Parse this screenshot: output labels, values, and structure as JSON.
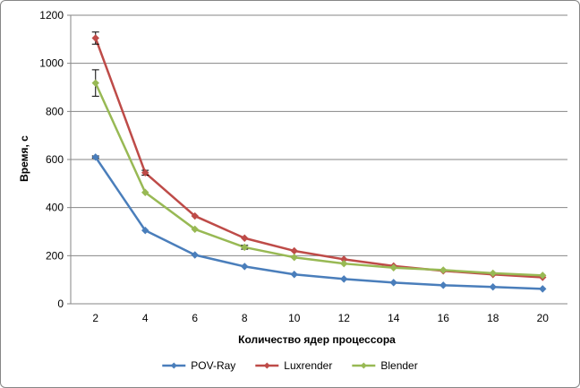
{
  "chart_data": {
    "type": "line",
    "title": "",
    "xlabel": "Количество  ядер процессора",
    "ylabel": "Время, с",
    "x": [
      2,
      4,
      6,
      8,
      10,
      12,
      14,
      16,
      18,
      20
    ],
    "xlim": [
      1,
      21
    ],
    "ylim": [
      0,
      1200
    ],
    "yticks": [
      0,
      200,
      400,
      600,
      800,
      1000,
      1200
    ],
    "grid": "horizontal",
    "legend_position": "bottom",
    "series": [
      {
        "name": "POV-Ray",
        "color": "#4a7ebb",
        "marker": "diamond",
        "values": [
          610,
          305,
          203,
          155,
          122,
          103,
          88,
          77,
          70,
          62
        ],
        "errors": [
          5,
          0,
          0,
          0,
          0,
          0,
          0,
          0,
          0,
          0
        ]
      },
      {
        "name": "Luxrender",
        "color": "#be4b48",
        "marker": "diamond",
        "values": [
          1105,
          545,
          365,
          273,
          220,
          185,
          157,
          137,
          122,
          110
        ],
        "errors": [
          25,
          10,
          0,
          0,
          0,
          0,
          0,
          0,
          0,
          0
        ]
      },
      {
        "name": "Blender",
        "color": "#98b954",
        "marker": "diamond",
        "values": [
          918,
          463,
          310,
          235,
          193,
          167,
          150,
          140,
          127,
          118
        ],
        "errors": [
          55,
          0,
          0,
          8,
          0,
          0,
          0,
          0,
          0,
          0
        ]
      }
    ]
  }
}
